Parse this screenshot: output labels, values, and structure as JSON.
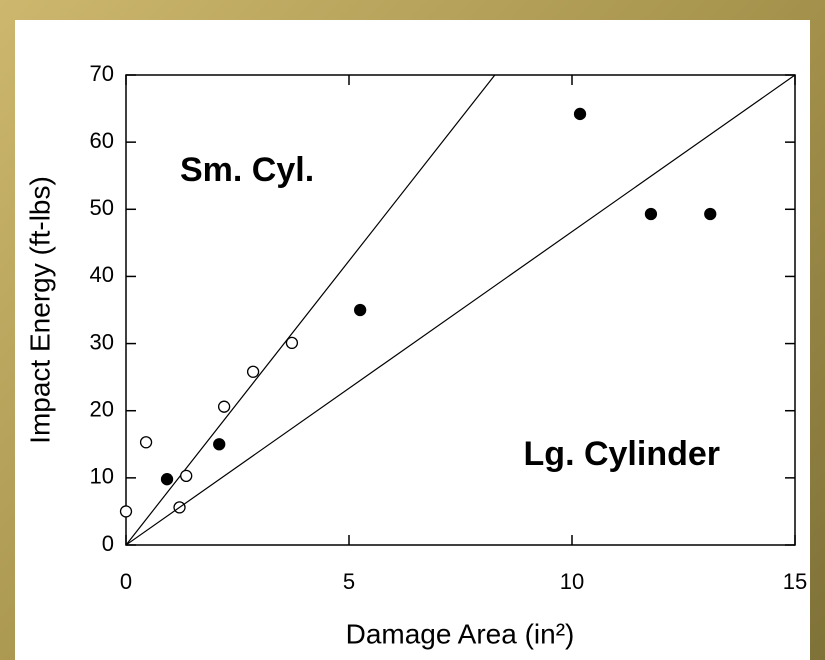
{
  "chart_data": {
    "type": "scatter",
    "xlabel": "Damage Area (in²)",
    "ylabel": "Impact Energy (ft-lbs)",
    "xlim": [
      0,
      15
    ],
    "ylim": [
      0,
      70
    ],
    "xticks": [
      0,
      5,
      10,
      15
    ],
    "yticks": [
      0,
      10,
      20,
      30,
      40,
      50,
      60,
      70
    ],
    "series": [
      {
        "name": "Sm. Cyl.",
        "color": "#000000",
        "filled": false,
        "x": [
          0,
          0.45,
          1.2,
          1.35,
          2.2,
          2.85,
          3.72
        ],
        "values": [
          5,
          15.3,
          5.6,
          10.3,
          20.6,
          25.8,
          30.1
        ],
        "fit_line": {
          "x": [
            0,
            8.27
          ],
          "y": [
            0,
            70
          ]
        }
      },
      {
        "name": "Lg. Cylinder",
        "color": "#000000",
        "filled": true,
        "x": [
          0.92,
          2.09,
          5.25,
          10.18,
          11.77,
          13.1
        ],
        "values": [
          9.8,
          15,
          35,
          64.2,
          49.3,
          49.3
        ],
        "fit_line": {
          "x": [
            0,
            15
          ],
          "y": [
            0,
            70
          ]
        }
      }
    ]
  }
}
